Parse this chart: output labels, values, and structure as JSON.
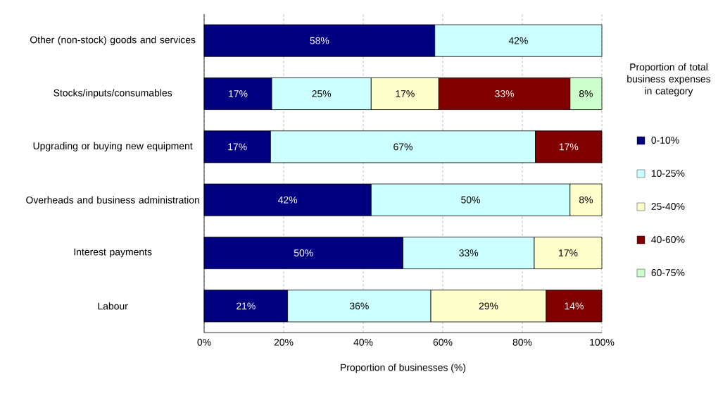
{
  "chart_data": {
    "type": "bar",
    "orientation": "horizontal",
    "stacked": true,
    "categories": [
      "Other (non-stock) goods and services",
      "Stocks/inputs/consumables",
      "Upgrading or buying new equipment",
      "Overheads and business administration",
      "Interest payments",
      "Labour"
    ],
    "series": [
      {
        "name": "0-10%",
        "color": "#000080",
        "values": [
          58,
          17,
          16.7,
          42,
          50,
          21
        ],
        "value_labels": [
          "58%",
          "17%",
          "17%",
          "42%",
          "50%",
          "21%"
        ]
      },
      {
        "name": "10-25%",
        "color": "#ccffff",
        "values": [
          42,
          25,
          66.6,
          50,
          33,
          36
        ],
        "value_labels": [
          "42%",
          "25%",
          "67%",
          "50%",
          "33%",
          "36%"
        ]
      },
      {
        "name": "25-40%",
        "color": "#ffffcc",
        "values": [
          null,
          17,
          null,
          8,
          17,
          29
        ],
        "value_labels": [
          null,
          "17%",
          null,
          "8%",
          "17%",
          "29%"
        ]
      },
      {
        "name": "40-60%",
        "color": "#800000",
        "values": [
          null,
          33,
          16.7,
          null,
          null,
          14
        ],
        "value_labels": [
          null,
          "33%",
          "17%",
          null,
          null,
          "14%"
        ]
      },
      {
        "name": "60-75%",
        "color": "#ccffcc",
        "values": [
          null,
          8,
          null,
          null,
          null,
          null
        ],
        "value_labels": [
          null,
          "8%",
          null,
          null,
          null,
          null
        ]
      }
    ],
    "xlim": [
      0,
      100
    ],
    "xticks": [
      {
        "value": 0,
        "label": "0%"
      },
      {
        "value": 20,
        "label": "20%"
      },
      {
        "value": 40,
        "label": "40%"
      },
      {
        "value": 60,
        "label": "60%"
      },
      {
        "value": 80,
        "label": "80%"
      },
      {
        "value": 100,
        "label": "100%"
      }
    ],
    "xlabel": "Proportion of businesses (%)",
    "legend_title": "Proportion of total business expenses in category",
    "legend": "right",
    "grid": "x"
  }
}
